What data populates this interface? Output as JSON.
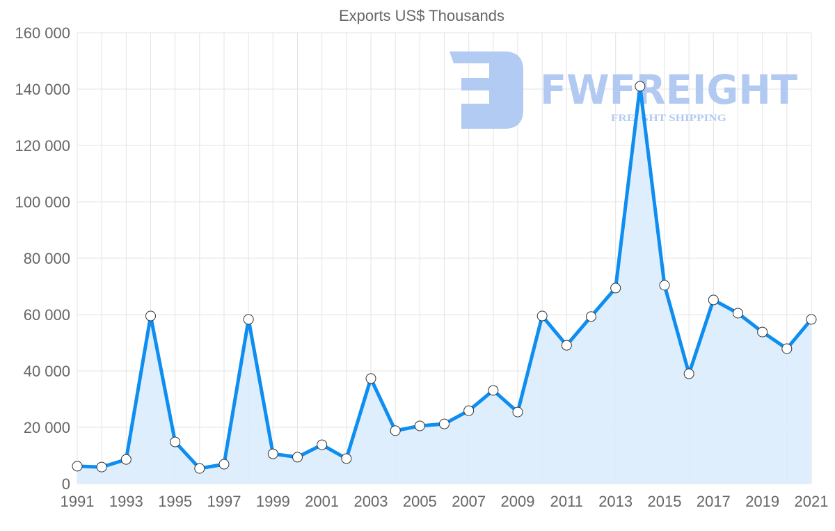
{
  "chart_data": {
    "type": "line",
    "title": "Exports US$ Thousands",
    "xlabel": "",
    "ylabel": "",
    "x": [
      1991,
      1992,
      1993,
      1994,
      1995,
      1996,
      1997,
      1998,
      1999,
      2000,
      2001,
      2002,
      2003,
      2004,
      2005,
      2006,
      2007,
      2008,
      2009,
      2010,
      2011,
      2012,
      2013,
      2014,
      2015,
      2016,
      2017,
      2018,
      2019,
      2020,
      2021
    ],
    "series": [
      {
        "name": "Exports US$ Thousands",
        "values": [
          6200,
          5900,
          8600,
          59500,
          14800,
          5400,
          6900,
          58300,
          10600,
          9400,
          13800,
          8900,
          37300,
          18800,
          20500,
          21200,
          25900,
          33100,
          25400,
          59500,
          49100,
          59300,
          69400,
          141000,
          70400,
          39000,
          65200,
          60500,
          53800,
          47900,
          58300
        ]
      }
    ],
    "ylim": [
      0,
      160000
    ],
    "yticks": [
      0,
      20000,
      40000,
      60000,
      80000,
      100000,
      120000,
      140000,
      160000
    ],
    "ytick_labels": [
      "0",
      "20 000",
      "40 000",
      "60 000",
      "80 000",
      "100 000",
      "120 000",
      "140 000",
      "160 000"
    ],
    "xtick_labels": [
      "1991",
      "1993",
      "1995",
      "1997",
      "1999",
      "2001",
      "2003",
      "2005",
      "2007",
      "2009",
      "2011",
      "2013",
      "2015",
      "2017",
      "2019",
      "2021"
    ],
    "grid": true,
    "line_color": "#0d8ef0",
    "fill_color": "#dbecfc",
    "marker_color": "#ffffff"
  },
  "watermark": {
    "brand": "FWFREIGHT",
    "tagline": "FREIGHT SHIPPING",
    "color": "#aec8f2"
  }
}
